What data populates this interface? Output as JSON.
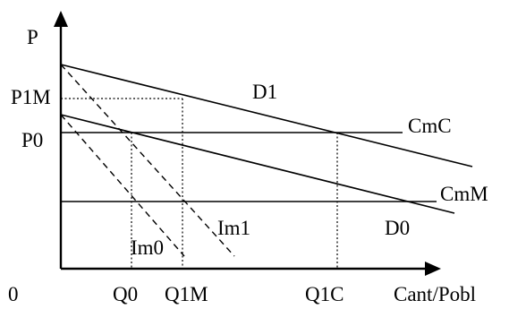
{
  "diagram": {
    "axis_labels": {
      "price": "P",
      "quantity": "Cant/Pobl",
      "origin": "0"
    },
    "price_labels": {
      "p1m": "P1M",
      "p0": "P0"
    },
    "quantity_labels": {
      "q0": "Q0",
      "q1m": "Q1M",
      "q1c": "Q1C"
    },
    "curve_labels": {
      "d1": "D1",
      "d0": "D0",
      "cmc": "CmC",
      "cmm": "CmM",
      "im0": "Im0",
      "im1": "Im1"
    }
  }
}
